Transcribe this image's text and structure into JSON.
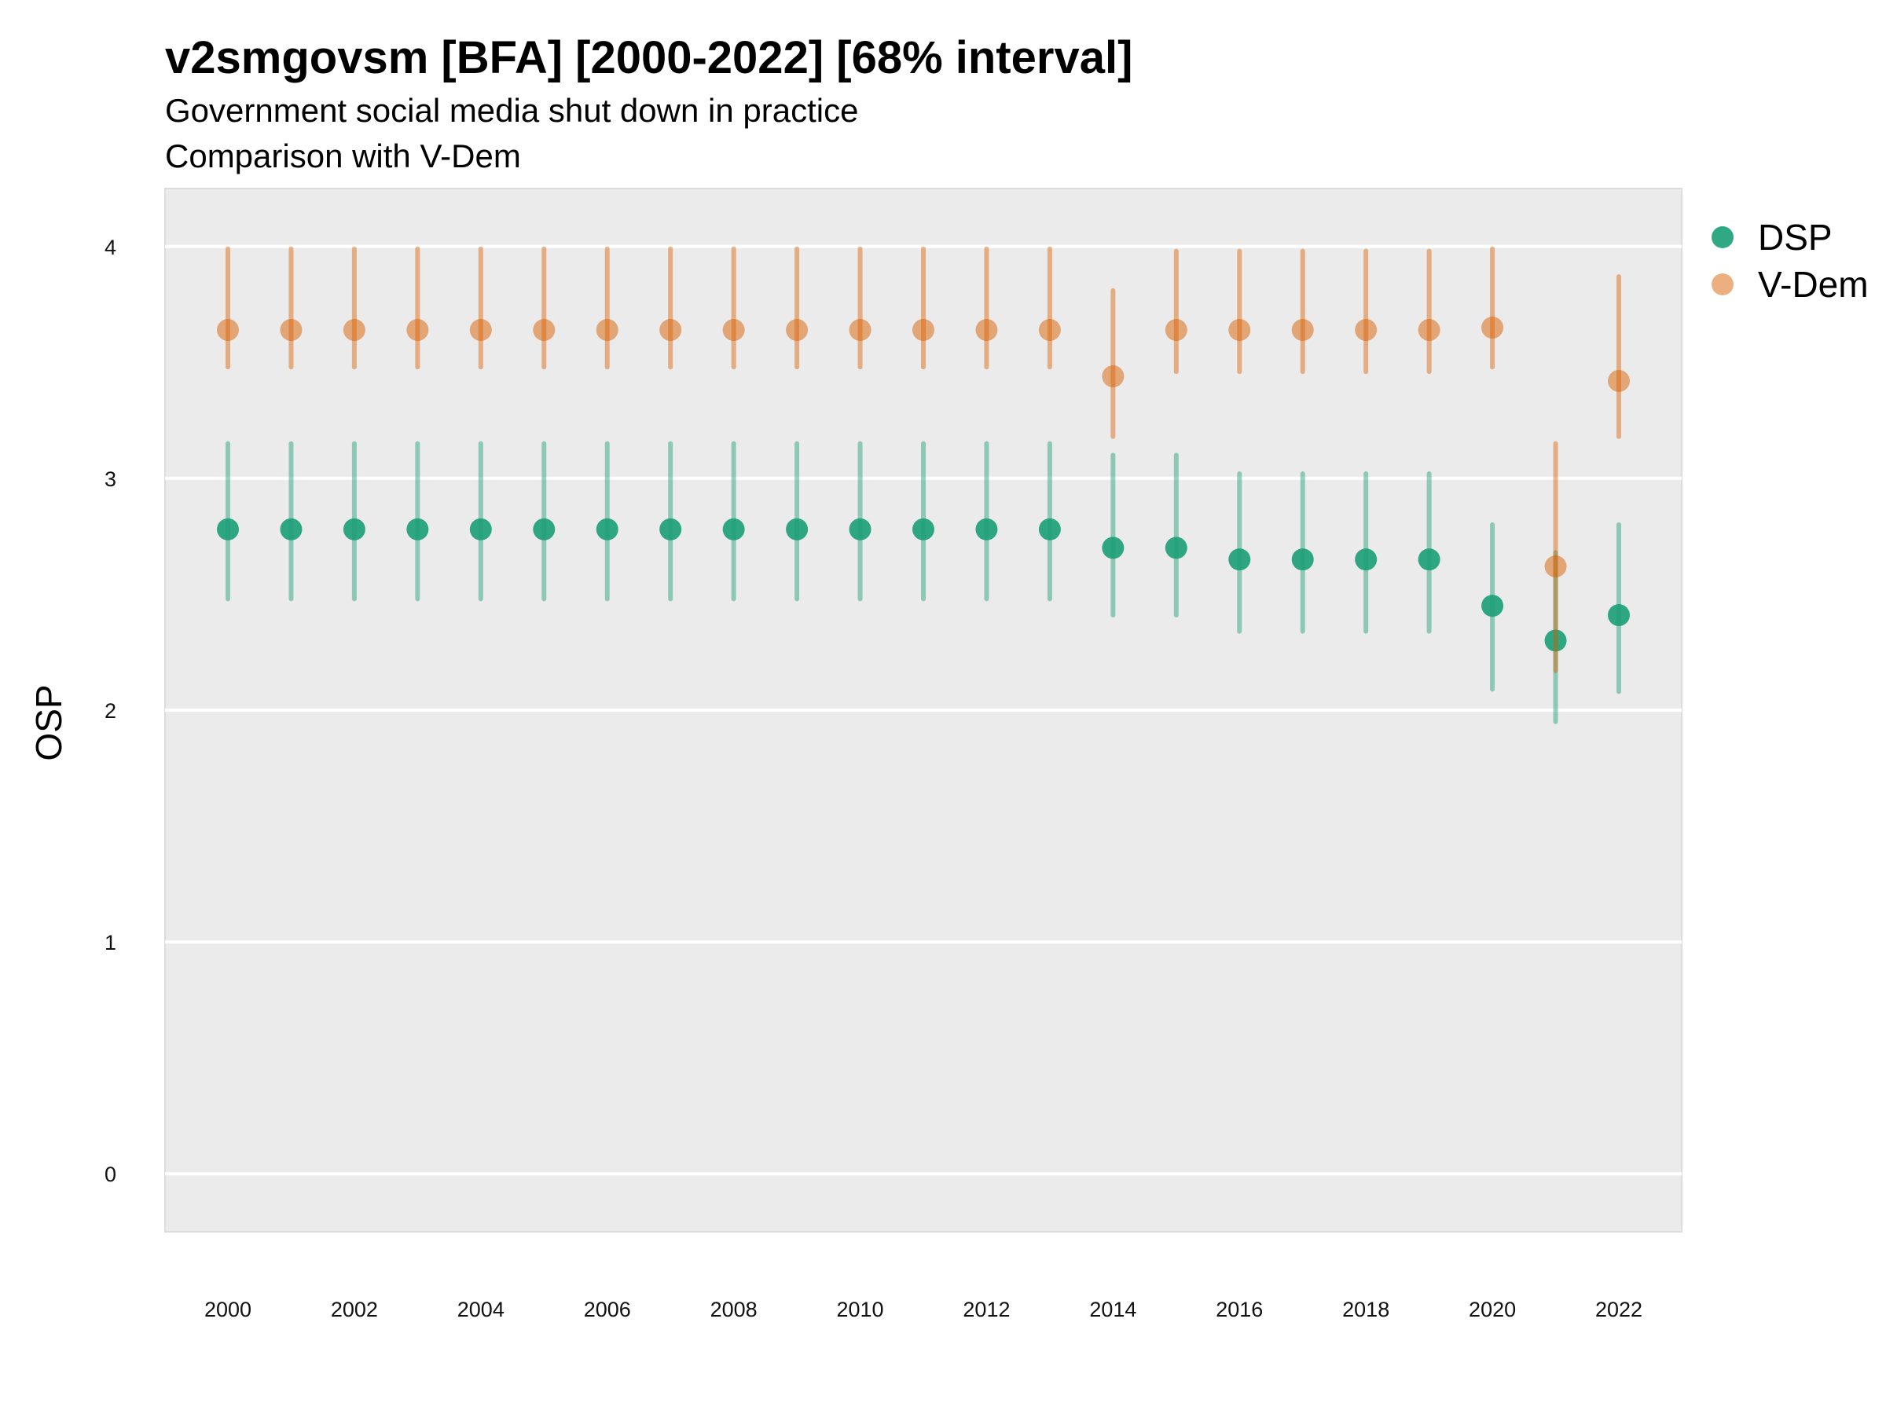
{
  "chart_data": {
    "type": "scatter",
    "title": "v2smgovsm [BFA] [2000-2022] [68% interval]",
    "subtitle_lines": [
      "Government social media shut down in practice",
      "Comparison with V-Dem"
    ],
    "xlabel": "",
    "ylabel": "OSP",
    "ylim": [
      -0.25,
      4.25
    ],
    "y_ticks": [
      0,
      1,
      2,
      3,
      4
    ],
    "x_ticks": [
      2000,
      2002,
      2004,
      2006,
      2008,
      2010,
      2012,
      2014,
      2016,
      2018,
      2020,
      2022
    ],
    "x": [
      2000,
      2001,
      2002,
      2003,
      2004,
      2005,
      2006,
      2007,
      2008,
      2009,
      2010,
      2011,
      2012,
      2013,
      2014,
      2015,
      2016,
      2017,
      2018,
      2019,
      2020,
      2021,
      2022
    ],
    "grid": true,
    "legend_position": "right",
    "series": [
      {
        "name": "DSP",
        "color": "#1b9e77",
        "values": [
          2.78,
          2.78,
          2.78,
          2.78,
          2.78,
          2.78,
          2.78,
          2.78,
          2.78,
          2.78,
          2.78,
          2.78,
          2.78,
          2.78,
          2.7,
          2.7,
          2.65,
          2.65,
          2.65,
          2.65,
          2.45,
          2.3,
          2.41
        ],
        "lower": [
          2.48,
          2.48,
          2.48,
          2.48,
          2.48,
          2.48,
          2.48,
          2.48,
          2.48,
          2.48,
          2.48,
          2.48,
          2.48,
          2.48,
          2.41,
          2.41,
          2.34,
          2.34,
          2.34,
          2.34,
          2.09,
          1.95,
          2.08
        ],
        "upper": [
          3.15,
          3.15,
          3.15,
          3.15,
          3.15,
          3.15,
          3.15,
          3.15,
          3.15,
          3.15,
          3.15,
          3.15,
          3.15,
          3.15,
          3.1,
          3.1,
          3.02,
          3.02,
          3.02,
          3.02,
          2.8,
          2.68,
          2.8
        ]
      },
      {
        "name": "V-Dem",
        "color": "#d95f02",
        "values": [
          3.64,
          3.64,
          3.64,
          3.64,
          3.64,
          3.64,
          3.64,
          3.64,
          3.64,
          3.64,
          3.64,
          3.64,
          3.64,
          3.64,
          3.44,
          3.64,
          3.64,
          3.64,
          3.64,
          3.64,
          3.65,
          2.62,
          3.42
        ],
        "lower": [
          3.48,
          3.48,
          3.48,
          3.48,
          3.48,
          3.48,
          3.48,
          3.48,
          3.48,
          3.48,
          3.48,
          3.48,
          3.48,
          3.48,
          3.18,
          3.46,
          3.46,
          3.46,
          3.46,
          3.46,
          3.48,
          2.17,
          3.18
        ],
        "upper": [
          3.99,
          3.99,
          3.99,
          3.99,
          3.99,
          3.99,
          3.99,
          3.99,
          3.99,
          3.99,
          3.99,
          3.99,
          3.99,
          3.99,
          3.81,
          3.98,
          3.98,
          3.98,
          3.98,
          3.98,
          3.99,
          3.15,
          3.87
        ]
      }
    ]
  }
}
